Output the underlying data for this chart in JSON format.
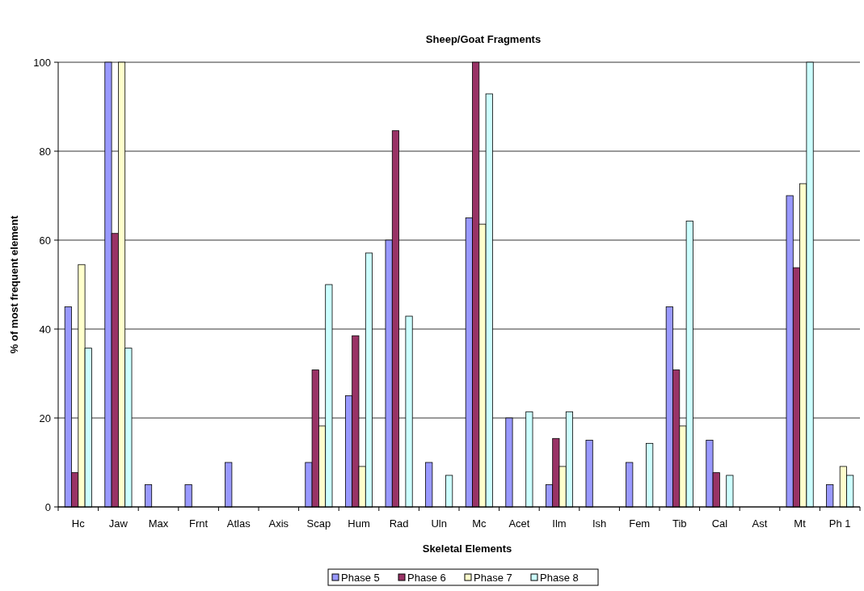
{
  "chart_data": {
    "type": "bar",
    "title": "Sheep/Goat Fragments",
    "xlabel": "Skeletal Elements",
    "ylabel": "% of most frequent element",
    "categories": [
      "Hc",
      "Jaw",
      "Max",
      "Frnt",
      "Atlas",
      "Axis",
      "Scap",
      "Hum",
      "Rad",
      "Uln",
      "Mc",
      "Acet",
      "Ilm",
      "Ish",
      "Fem",
      "Tib",
      "Cal",
      "Ast",
      "Mt",
      "Ph 1"
    ],
    "series": [
      {
        "name": "Phase 5",
        "color": "#9999ff",
        "values": [
          45,
          100,
          5,
          5,
          10,
          0,
          10,
          25,
          60,
          10,
          65,
          20,
          5,
          15,
          10,
          45,
          15,
          0,
          70,
          5
        ]
      },
      {
        "name": "Phase 6",
        "color": "#993366",
        "values": [
          7.7,
          61.5,
          0,
          0,
          0,
          0,
          30.8,
          38.5,
          84.6,
          0,
          100,
          0,
          15.4,
          0,
          0,
          30.8,
          7.7,
          0,
          53.8,
          0
        ]
      },
      {
        "name": "Phase 7",
        "color": "#ffffcc",
        "values": [
          54.5,
          100,
          0,
          0,
          0,
          0,
          18.2,
          9.1,
          0,
          0,
          63.6,
          0,
          9.1,
          0,
          0,
          18.2,
          0,
          0,
          72.7,
          9.1
        ]
      },
      {
        "name": "Phase 8",
        "color": "#ccffff",
        "values": [
          35.7,
          35.7,
          0,
          0,
          0,
          0,
          50,
          57.1,
          42.9,
          7.1,
          92.9,
          21.4,
          21.4,
          0,
          14.3,
          64.3,
          7.1,
          0,
          100,
          7.1
        ]
      }
    ],
    "ylim": [
      0,
      100
    ],
    "yticks": [
      0,
      20,
      40,
      60,
      80,
      100
    ],
    "grid": "y",
    "legend": "bottom"
  }
}
